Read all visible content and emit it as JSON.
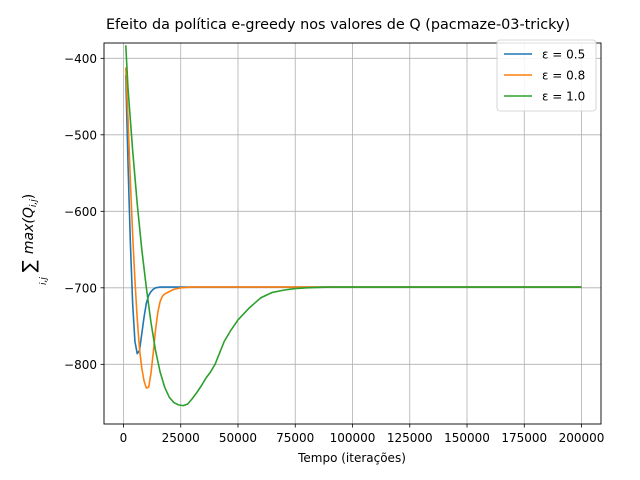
{
  "chart_data": {
    "type": "line",
    "title": "Efeito da política e-greedy nos valores de Q (pacmaze-03-tricky)",
    "xlabel": "Tempo (iterações)",
    "ylabel": "∑ max(Q i,j)",
    "xlim": [
      -8500,
      208500
    ],
    "ylim": [
      -878,
      -380
    ],
    "xticks": [
      0,
      25000,
      50000,
      75000,
      100000,
      125000,
      150000,
      175000,
      200000
    ],
    "xtick_labels": [
      "0",
      "25000",
      "50000",
      "75000",
      "100000",
      "125000",
      "150000",
      "175000",
      "200000"
    ],
    "yticks": [
      -800,
      -700,
      -600,
      -500,
      -400
    ],
    "ytick_labels": [
      "−800",
      "−700",
      "−600",
      "−500",
      "−400"
    ],
    "grid": true,
    "legend_position": "top-right",
    "series": [
      {
        "name": "ε = 0.5",
        "color": "#1f77b4",
        "points": [
          [
            1000,
            -422
          ],
          [
            2000,
            -540
          ],
          [
            3000,
            -640
          ],
          [
            4000,
            -720
          ],
          [
            5000,
            -770
          ],
          [
            6000,
            -786
          ],
          [
            7000,
            -782
          ],
          [
            8000,
            -760
          ],
          [
            9000,
            -738
          ],
          [
            10000,
            -720
          ],
          [
            11000,
            -710
          ],
          [
            12000,
            -705
          ],
          [
            13000,
            -702
          ],
          [
            14000,
            -700
          ],
          [
            16000,
            -699
          ],
          [
            20000,
            -699
          ],
          [
            30000,
            -699
          ],
          [
            50000,
            -699
          ],
          [
            100000,
            -699
          ],
          [
            150000,
            -699
          ],
          [
            200000,
            -699
          ]
        ]
      },
      {
        "name": "ε = 0.8",
        "color": "#ff7f0e",
        "points": [
          [
            1000,
            -412
          ],
          [
            2000,
            -480
          ],
          [
            3000,
            -560
          ],
          [
            4000,
            -630
          ],
          [
            5000,
            -690
          ],
          [
            6000,
            -740
          ],
          [
            7000,
            -780
          ],
          [
            8000,
            -805
          ],
          [
            9000,
            -822
          ],
          [
            10000,
            -831
          ],
          [
            11000,
            -830
          ],
          [
            12000,
            -812
          ],
          [
            13000,
            -785
          ],
          [
            14000,
            -755
          ],
          [
            15000,
            -732
          ],
          [
            16000,
            -718
          ],
          [
            17000,
            -711
          ],
          [
            18000,
            -708
          ],
          [
            20000,
            -705
          ],
          [
            22000,
            -702
          ],
          [
            25000,
            -700
          ],
          [
            30000,
            -699
          ],
          [
            50000,
            -699
          ],
          [
            100000,
            -699
          ],
          [
            150000,
            -699
          ],
          [
            200000,
            -699
          ]
        ]
      },
      {
        "name": "ε = 1.0",
        "color": "#2ca02c",
        "points": [
          [
            1000,
            -383
          ],
          [
            2000,
            -440
          ],
          [
            4000,
            -520
          ],
          [
            6000,
            -590
          ],
          [
            8000,
            -650
          ],
          [
            10000,
            -700
          ],
          [
            12000,
            -745
          ],
          [
            14000,
            -782
          ],
          [
            16000,
            -810
          ],
          [
            18000,
            -830
          ],
          [
            20000,
            -843
          ],
          [
            22000,
            -850
          ],
          [
            24000,
            -853
          ],
          [
            26000,
            -854
          ],
          [
            28000,
            -852
          ],
          [
            30000,
            -845
          ],
          [
            32000,
            -837
          ],
          [
            34000,
            -828
          ],
          [
            36000,
            -818
          ],
          [
            38000,
            -810
          ],
          [
            40000,
            -800
          ],
          [
            42000,
            -785
          ],
          [
            44000,
            -770
          ],
          [
            47000,
            -755
          ],
          [
            50000,
            -742
          ],
          [
            55000,
            -726
          ],
          [
            60000,
            -713
          ],
          [
            65000,
            -706
          ],
          [
            70000,
            -703
          ],
          [
            75000,
            -701
          ],
          [
            80000,
            -700
          ],
          [
            90000,
            -699
          ],
          [
            100000,
            -699
          ],
          [
            150000,
            -699
          ],
          [
            200000,
            -699
          ]
        ]
      }
    ]
  }
}
